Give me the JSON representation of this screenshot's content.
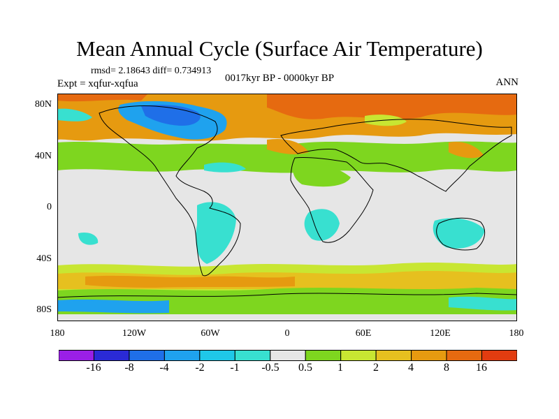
{
  "title": "Mean Annual Cycle (Surface Air Temperature)",
  "stats": "rmsd= 2.18643 diff= 0.734913",
  "experiment": "Expt = xqfur-xqfua",
  "period": "0017kyr BP - 0000kyr BP",
  "season": "ANN",
  "lat_labels": [
    "80N",
    "40N",
    "0",
    "40S",
    "80S"
  ],
  "lon_labels": [
    "180",
    "120W",
    "60W",
    "0",
    "60E",
    "120E",
    "180"
  ],
  "colorbar": {
    "labels": [
      "-16",
      "-8",
      "-4",
      "-2",
      "-1",
      "-0.5",
      "0.5",
      "1",
      "2",
      "4",
      "8",
      "16"
    ],
    "colors": [
      "#9a1fe6",
      "#2a2ad6",
      "#1f6fe8",
      "#1fa2ee",
      "#1fc8e8",
      "#38e0d0",
      "#e6e6e6",
      "#7ed61f",
      "#c8e632",
      "#e6c01f",
      "#e69a10",
      "#e66a10",
      "#e23c10"
    ]
  }
}
